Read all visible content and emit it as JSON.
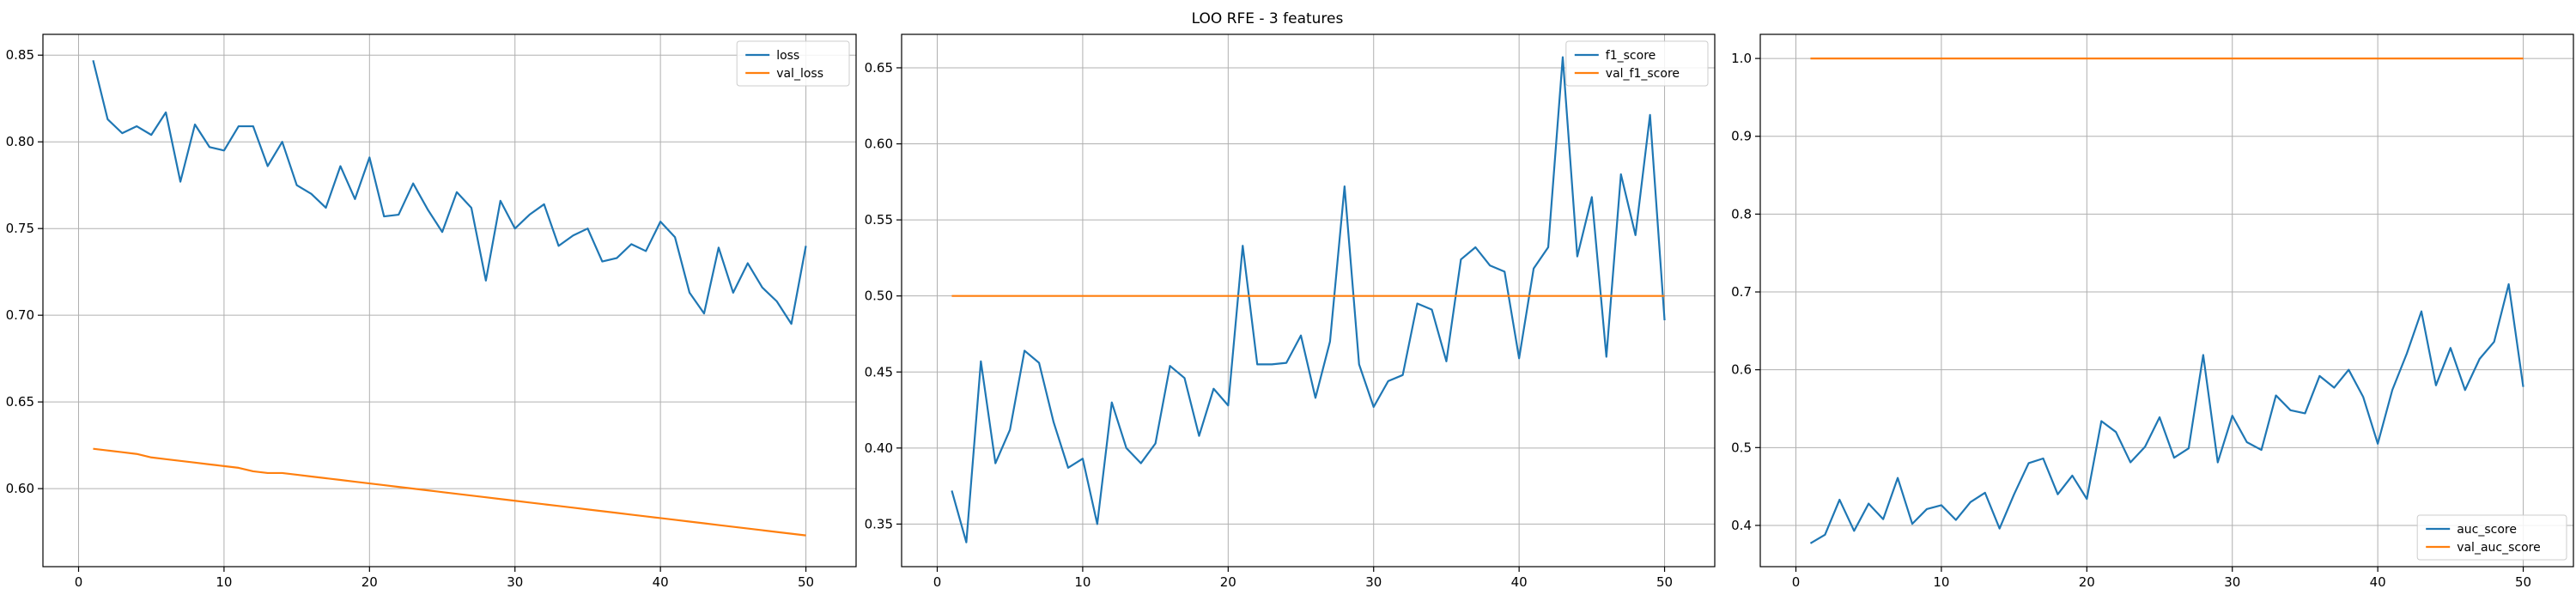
{
  "figure": {
    "title": "LOO RFE - 3 features"
  },
  "colors": {
    "series1": "#1f77b4",
    "series2": "#ff7f0e",
    "grid": "#b0b0b0",
    "axis": "#000000"
  },
  "chart_data": [
    {
      "type": "line",
      "title": "",
      "xlabel": "",
      "ylabel": "",
      "xlim": [
        -2.45,
        53.45
      ],
      "ylim": [
        0.555,
        0.862
      ],
      "xticks": [
        0,
        10,
        20,
        30,
        40,
        50
      ],
      "yticks": [
        0.6,
        0.65,
        0.7,
        0.75,
        0.8,
        0.85
      ],
      "ytick_labels": [
        "0.60",
        "0.65",
        "0.70",
        "0.75",
        "0.80",
        "0.85"
      ],
      "grid": true,
      "legend": "upper right",
      "x": [
        1,
        2,
        3,
        4,
        5,
        6,
        7,
        8,
        9,
        10,
        11,
        12,
        13,
        14,
        15,
        16,
        17,
        18,
        19,
        20,
        21,
        22,
        23,
        24,
        25,
        26,
        27,
        28,
        29,
        30,
        31,
        32,
        33,
        34,
        35,
        36,
        37,
        38,
        39,
        40,
        41,
        42,
        43,
        44,
        45,
        46,
        47,
        48,
        49,
        50
      ],
      "series": [
        {
          "name": "loss",
          "color": "#1f77b4",
          "values": [
            0.847,
            0.813,
            0.805,
            0.809,
            0.804,
            0.817,
            0.777,
            0.81,
            0.797,
            0.795,
            0.809,
            0.809,
            0.786,
            0.8,
            0.775,
            0.77,
            0.762,
            0.786,
            0.767,
            0.791,
            0.757,
            0.758,
            0.776,
            0.761,
            0.748,
            0.771,
            0.762,
            0.72,
            0.766,
            0.75,
            0.758,
            0.764,
            0.74,
            0.746,
            0.75,
            0.731,
            0.733,
            0.741,
            0.737,
            0.754,
            0.745,
            0.713,
            0.701,
            0.739,
            0.713,
            0.73,
            0.716,
            0.708,
            0.695,
            0.74
          ]
        },
        {
          "name": "val_loss",
          "color": "#ff7f0e",
          "values": [
            0.623,
            0.622,
            0.621,
            0.62,
            0.618,
            0.617,
            0.616,
            0.615,
            0.614,
            0.613,
            0.612,
            0.61,
            0.609,
            0.609,
            0.608,
            0.607,
            0.606,
            0.605,
            0.604,
            0.603,
            0.602,
            0.601,
            0.6,
            0.599,
            0.598,
            0.597,
            0.596,
            0.595,
            0.594,
            0.593,
            0.592,
            0.591,
            0.59,
            0.589,
            0.588,
            0.587,
            0.586,
            0.585,
            0.584,
            0.583,
            0.582,
            0.581,
            0.58,
            0.579,
            0.578,
            0.577,
            0.576,
            0.575,
            0.574,
            0.573
          ]
        }
      ]
    },
    {
      "type": "line",
      "title": "",
      "xlabel": "",
      "ylabel": "",
      "xlim": [
        -2.45,
        53.45
      ],
      "ylim": [
        0.322,
        0.672
      ],
      "xticks": [
        0,
        10,
        20,
        30,
        40,
        50
      ],
      "yticks": [
        0.35,
        0.4,
        0.45,
        0.5,
        0.55,
        0.6,
        0.65
      ],
      "ytick_labels": [
        "0.35",
        "0.40",
        "0.45",
        "0.50",
        "0.55",
        "0.60",
        "0.65"
      ],
      "grid": true,
      "legend": "upper right",
      "x": [
        1,
        2,
        3,
        4,
        5,
        6,
        7,
        8,
        9,
        10,
        11,
        12,
        13,
        14,
        15,
        16,
        17,
        18,
        19,
        20,
        21,
        22,
        23,
        24,
        25,
        26,
        27,
        28,
        29,
        30,
        31,
        32,
        33,
        34,
        35,
        36,
        37,
        38,
        39,
        40,
        41,
        42,
        43,
        44,
        45,
        46,
        47,
        48,
        49,
        50
      ],
      "series": [
        {
          "name": "f1_score",
          "color": "#1f77b4",
          "values": [
            0.372,
            0.338,
            0.457,
            0.39,
            0.412,
            0.464,
            0.456,
            0.417,
            0.387,
            0.393,
            0.35,
            0.43,
            0.4,
            0.39,
            0.403,
            0.454,
            0.446,
            0.408,
            0.439,
            0.428,
            0.533,
            0.455,
            0.455,
            0.456,
            0.474,
            0.433,
            0.47,
            0.572,
            0.455,
            0.427,
            0.444,
            0.448,
            0.495,
            0.491,
            0.457,
            0.524,
            0.532,
            0.52,
            0.516,
            0.459,
            0.518,
            0.532,
            0.657,
            0.526,
            0.565,
            0.46,
            0.58,
            0.54,
            0.619,
            0.484
          ]
        },
        {
          "name": "val_f1_score",
          "color": "#ff7f0e",
          "values": [
            0.5,
            0.5,
            0.5,
            0.5,
            0.5,
            0.5,
            0.5,
            0.5,
            0.5,
            0.5,
            0.5,
            0.5,
            0.5,
            0.5,
            0.5,
            0.5,
            0.5,
            0.5,
            0.5,
            0.5,
            0.5,
            0.5,
            0.5,
            0.5,
            0.5,
            0.5,
            0.5,
            0.5,
            0.5,
            0.5,
            0.5,
            0.5,
            0.5,
            0.5,
            0.5,
            0.5,
            0.5,
            0.5,
            0.5,
            0.5,
            0.5,
            0.5,
            0.5,
            0.5,
            0.5,
            0.5,
            0.5,
            0.5,
            0.5,
            0.5
          ]
        }
      ]
    },
    {
      "type": "line",
      "title": "",
      "xlabel": "",
      "ylabel": "",
      "xlim": [
        -2.45,
        53.45
      ],
      "ylim": [
        0.347,
        1.031
      ],
      "xticks": [
        0,
        10,
        20,
        30,
        40,
        50
      ],
      "yticks": [
        0.4,
        0.5,
        0.6,
        0.7,
        0.8,
        0.9,
        1.0
      ],
      "ytick_labels": [
        "0.4",
        "0.5",
        "0.6",
        "0.7",
        "0.8",
        "0.9",
        "1.0"
      ],
      "grid": true,
      "legend": "lower right",
      "x": [
        1,
        2,
        3,
        4,
        5,
        6,
        7,
        8,
        9,
        10,
        11,
        12,
        13,
        14,
        15,
        16,
        17,
        18,
        19,
        20,
        21,
        22,
        23,
        24,
        25,
        26,
        27,
        28,
        29,
        30,
        31,
        32,
        33,
        34,
        35,
        36,
        37,
        38,
        39,
        40,
        41,
        42,
        43,
        44,
        45,
        46,
        47,
        48,
        49,
        50
      ],
      "series": [
        {
          "name": "auc_score",
          "color": "#1f77b4",
          "values": [
            0.377,
            0.388,
            0.433,
            0.393,
            0.428,
            0.408,
            0.461,
            0.402,
            0.421,
            0.426,
            0.407,
            0.43,
            0.442,
            0.396,
            0.44,
            0.48,
            0.486,
            0.44,
            0.464,
            0.434,
            0.534,
            0.52,
            0.481,
            0.501,
            0.539,
            0.487,
            0.499,
            0.619,
            0.481,
            0.541,
            0.507,
            0.497,
            0.567,
            0.548,
            0.544,
            0.592,
            0.577,
            0.6,
            0.565,
            0.505,
            0.574,
            0.621,
            0.675,
            0.58,
            0.628,
            0.574,
            0.614,
            0.636,
            0.71,
            0.578
          ]
        },
        {
          "name": "val_auc_score",
          "color": "#ff7f0e",
          "values": [
            1.0,
            1.0,
            1.0,
            1.0,
            1.0,
            1.0,
            1.0,
            1.0,
            1.0,
            1.0,
            1.0,
            1.0,
            1.0,
            1.0,
            1.0,
            1.0,
            1.0,
            1.0,
            1.0,
            1.0,
            1.0,
            1.0,
            1.0,
            1.0,
            1.0,
            1.0,
            1.0,
            1.0,
            1.0,
            1.0,
            1.0,
            1.0,
            1.0,
            1.0,
            1.0,
            1.0,
            1.0,
            1.0,
            1.0,
            1.0,
            1.0,
            1.0,
            1.0,
            1.0,
            1.0,
            1.0,
            1.0,
            1.0,
            1.0,
            1.0
          ]
        }
      ]
    }
  ]
}
